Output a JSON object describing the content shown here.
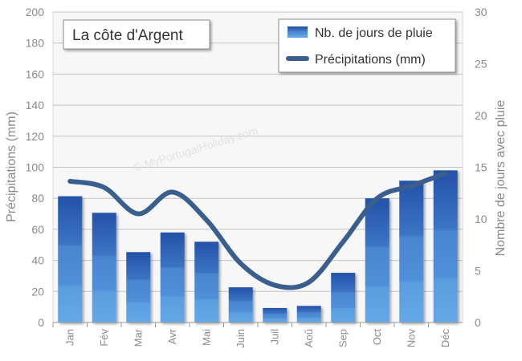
{
  "chart_data": {
    "type": "bar+line",
    "title": "La côte d'Argent",
    "watermark": "© MyPortugalHoliday.com",
    "categories": [
      "Jan",
      "Fév",
      "Mar",
      "Avr",
      "Mai",
      "Juin",
      "Juil",
      "Aoû",
      "Sep",
      "Oct",
      "Nov",
      "Déc"
    ],
    "series": [
      {
        "name": "Nb. de jours de pluie",
        "type": "bar",
        "axis": "right",
        "values": [
          12.2,
          10.6,
          6.8,
          8.7,
          7.8,
          3.4,
          1.4,
          1.6,
          4.8,
          12,
          13.7,
          14.7
        ],
        "color": "#2f5fb0"
      },
      {
        "name": "Précipitations (mm)",
        "type": "line",
        "axis": "left",
        "values": [
          91,
          87,
          70,
          84,
          66,
          38,
          24,
          26,
          52,
          80,
          88,
          96
        ],
        "color": "#3a5e8e"
      }
    ],
    "ylabel": "Précipitations (mm)",
    "ylabel_right": "Nombre de jours avec pluie",
    "ylim": [
      0,
      200
    ],
    "ylim_right": [
      0,
      30
    ],
    "yticks": [
      "0",
      "20",
      "40",
      "60",
      "80",
      "100",
      "120",
      "140",
      "160",
      "180",
      "200"
    ],
    "yticks_right": [
      "0",
      "5",
      "10",
      "15",
      "20",
      "25",
      "30"
    ],
    "grid": true,
    "legend_position": "top-right"
  }
}
